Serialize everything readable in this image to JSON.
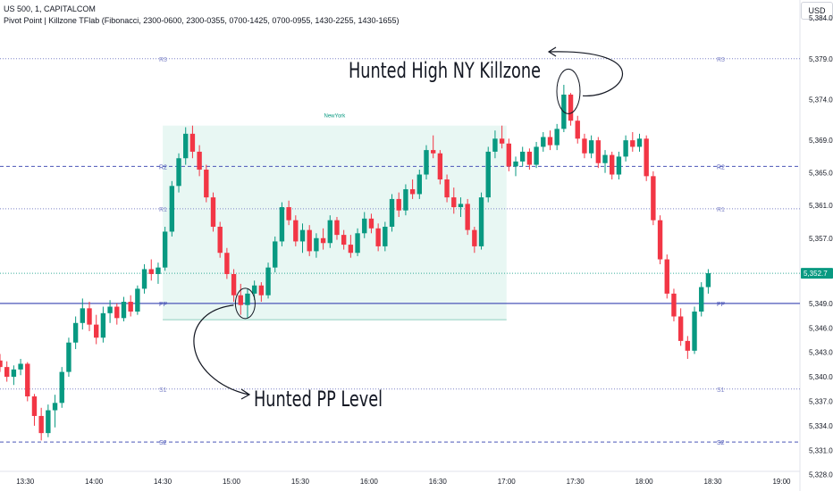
{
  "header": {
    "symbol_line": "US 500, 1, CAPITALCOM",
    "indicator_line": "Pivot Point | Killzone TFlab (Fibonacci, 2300-0600, 2300-0355, 0700-1425, 0700-0955, 1430-2255, 1430-1655)"
  },
  "currency_button": "USD",
  "chart_data": {
    "type": "candlestick",
    "symbol": "US 500",
    "timeframe": "1",
    "y_axis": {
      "ylim": [
        5326.0,
        5386.2
      ],
      "ticks": [
        5384.0,
        5379.0,
        5374.0,
        5369.0,
        5365.0,
        5361.0,
        5357.0,
        5353.0,
        5349.0,
        5346.0,
        5343.0,
        5340.0,
        5337.0,
        5334.0,
        5331.0,
        5328.0
      ],
      "tick_labels": [
        "5,384.0",
        "5,379.0",
        "5,374.0",
        "5,369.0",
        "5,365.0",
        "5,361.0",
        "5,357.0",
        "5,353.0",
        "5,349.0",
        "5,346.0",
        "5,343.0",
        "5,340.0",
        "5,337.0",
        "5,334.0",
        "5,331.0",
        "5,328.0"
      ]
    },
    "x_axis": {
      "xlim": [
        "13:19",
        "19:08"
      ],
      "ticks": [
        "13:30",
        "14:00",
        "14:30",
        "15:00",
        "15:30",
        "16:00",
        "16:30",
        "17:00",
        "17:30",
        "18:00",
        "18:30",
        "19:00"
      ]
    },
    "last_price": 5352.7,
    "last_price_label": "5,352.7",
    "last_price_color": "#089981",
    "up_color": "#089981",
    "down_color": "#f23645",
    "pivot_levels": [
      {
        "label": "R3",
        "value": 5379.0,
        "style": "dotted",
        "color": "#7e84c8"
      },
      {
        "label": "R2",
        "value": 5365.8,
        "style": "dashed",
        "color": "#4b56b8"
      },
      {
        "label": "R1",
        "value": 5360.6,
        "style": "dotted",
        "color": "#7e84c8"
      },
      {
        "label": "PP",
        "value": 5349.0,
        "style": "solid",
        "color": "#4b56b8"
      },
      {
        "label": "S1",
        "value": 5338.5,
        "style": "dotted",
        "color": "#7e84c8"
      },
      {
        "label": "S2",
        "value": 5332.0,
        "style": "dashed",
        "color": "#4b56b8"
      }
    ],
    "killzone": {
      "label": "NewYork",
      "start": "14:30",
      "end": "17:00",
      "high": 5370.8,
      "low": 5347.0,
      "color": "#e0f4ef",
      "label_color": "#089981"
    },
    "annotations": [
      {
        "text": "Hunted High NY Killzone",
        "time": "17:27",
        "price": 5375.0
      },
      {
        "text": "Hunted PP Level",
        "time": "15:06",
        "price": 5349.0
      }
    ],
    "series": [
      {
        "t": "13:19",
        "o": 5342.0,
        "h": 5342.8,
        "l": 5340.6,
        "c": 5341.2
      },
      {
        "t": "13:22",
        "o": 5341.2,
        "h": 5341.9,
        "l": 5339.4,
        "c": 5340.0
      },
      {
        "t": "13:25",
        "o": 5340.0,
        "h": 5341.4,
        "l": 5339.0,
        "c": 5340.9
      },
      {
        "t": "13:28",
        "o": 5340.9,
        "h": 5342.2,
        "l": 5340.2,
        "c": 5341.6
      },
      {
        "t": "13:31",
        "o": 5341.6,
        "h": 5341.8,
        "l": 5337.0,
        "c": 5337.6
      },
      {
        "t": "13:34",
        "o": 5337.6,
        "h": 5337.9,
        "l": 5334.0,
        "c": 5335.2
      },
      {
        "t": "13:37",
        "o": 5335.2,
        "h": 5336.2,
        "l": 5332.2,
        "c": 5333.1
      },
      {
        "t": "13:40",
        "o": 5333.1,
        "h": 5336.6,
        "l": 5332.6,
        "c": 5335.9
      },
      {
        "t": "13:43",
        "o": 5335.9,
        "h": 5337.8,
        "l": 5333.8,
        "c": 5336.8
      },
      {
        "t": "13:46",
        "o": 5336.8,
        "h": 5341.2,
        "l": 5336.2,
        "c": 5340.6
      },
      {
        "t": "13:49",
        "o": 5340.6,
        "h": 5344.8,
        "l": 5340.0,
        "c": 5344.2
      },
      {
        "t": "13:52",
        "o": 5344.2,
        "h": 5347.4,
        "l": 5343.4,
        "c": 5346.6
      },
      {
        "t": "13:55",
        "o": 5346.6,
        "h": 5349.6,
        "l": 5345.8,
        "c": 5348.4
      },
      {
        "t": "13:58",
        "o": 5348.4,
        "h": 5349.2,
        "l": 5345.6,
        "c": 5346.4
      },
      {
        "t": "14:01",
        "o": 5346.4,
        "h": 5347.6,
        "l": 5344.0,
        "c": 5344.8
      },
      {
        "t": "14:04",
        "o": 5344.8,
        "h": 5348.6,
        "l": 5344.2,
        "c": 5347.8
      },
      {
        "t": "14:07",
        "o": 5347.8,
        "h": 5349.4,
        "l": 5346.6,
        "c": 5348.6
      },
      {
        "t": "14:10",
        "o": 5348.6,
        "h": 5349.0,
        "l": 5346.4,
        "c": 5347.2
      },
      {
        "t": "14:13",
        "o": 5347.2,
        "h": 5349.8,
        "l": 5346.8,
        "c": 5349.2
      },
      {
        "t": "14:16",
        "o": 5349.2,
        "h": 5350.0,
        "l": 5347.4,
        "c": 5348.0
      },
      {
        "t": "14:19",
        "o": 5348.0,
        "h": 5351.2,
        "l": 5347.6,
        "c": 5350.8
      },
      {
        "t": "14:22",
        "o": 5350.8,
        "h": 5353.8,
        "l": 5350.2,
        "c": 5353.2
      },
      {
        "t": "14:25",
        "o": 5353.2,
        "h": 5354.4,
        "l": 5351.8,
        "c": 5352.6
      },
      {
        "t": "14:28",
        "o": 5352.6,
        "h": 5354.0,
        "l": 5351.4,
        "c": 5353.4
      },
      {
        "t": "14:31",
        "o": 5353.4,
        "h": 5358.4,
        "l": 5353.0,
        "c": 5357.8
      },
      {
        "t": "14:34",
        "o": 5357.8,
        "h": 5364.0,
        "l": 5357.2,
        "c": 5363.4
      },
      {
        "t": "14:37",
        "o": 5363.4,
        "h": 5367.4,
        "l": 5362.6,
        "c": 5366.8
      },
      {
        "t": "14:40",
        "o": 5366.8,
        "h": 5370.6,
        "l": 5366.0,
        "c": 5369.8
      },
      {
        "t": "14:43",
        "o": 5369.8,
        "h": 5370.8,
        "l": 5366.8,
        "c": 5367.6
      },
      {
        "t": "14:46",
        "o": 5367.6,
        "h": 5368.4,
        "l": 5364.6,
        "c": 5365.4
      },
      {
        "t": "14:49",
        "o": 5365.4,
        "h": 5366.0,
        "l": 5361.4,
        "c": 5362.0
      },
      {
        "t": "14:52",
        "o": 5362.0,
        "h": 5362.6,
        "l": 5357.8,
        "c": 5358.4
      },
      {
        "t": "14:55",
        "o": 5358.4,
        "h": 5359.0,
        "l": 5354.6,
        "c": 5355.2
      },
      {
        "t": "14:58",
        "o": 5355.2,
        "h": 5355.8,
        "l": 5352.0,
        "c": 5352.6
      },
      {
        "t": "15:01",
        "o": 5352.6,
        "h": 5353.2,
        "l": 5349.2,
        "c": 5350.0
      },
      {
        "t": "15:04",
        "o": 5350.0,
        "h": 5351.4,
        "l": 5347.6,
        "c": 5348.8
      },
      {
        "t": "15:07",
        "o": 5348.8,
        "h": 5350.8,
        "l": 5347.2,
        "c": 5350.2
      },
      {
        "t": "15:10",
        "o": 5350.2,
        "h": 5351.8,
        "l": 5349.4,
        "c": 5351.2
      },
      {
        "t": "15:13",
        "o": 5351.2,
        "h": 5351.6,
        "l": 5349.2,
        "c": 5350.0
      },
      {
        "t": "15:16",
        "o": 5350.0,
        "h": 5354.0,
        "l": 5349.6,
        "c": 5353.4
      },
      {
        "t": "15:19",
        "o": 5353.4,
        "h": 5357.2,
        "l": 5352.8,
        "c": 5356.6
      },
      {
        "t": "15:22",
        "o": 5356.6,
        "h": 5361.4,
        "l": 5356.0,
        "c": 5360.8
      },
      {
        "t": "15:25",
        "o": 5360.8,
        "h": 5361.6,
        "l": 5358.6,
        "c": 5359.2
      },
      {
        "t": "15:28",
        "o": 5359.2,
        "h": 5359.8,
        "l": 5356.0,
        "c": 5356.6
      },
      {
        "t": "15:31",
        "o": 5356.6,
        "h": 5358.8,
        "l": 5355.2,
        "c": 5358.0
      },
      {
        "t": "15:34",
        "o": 5358.0,
        "h": 5358.6,
        "l": 5354.8,
        "c": 5355.4
      },
      {
        "t": "15:37",
        "o": 5355.4,
        "h": 5357.6,
        "l": 5354.6,
        "c": 5357.0
      },
      {
        "t": "15:40",
        "o": 5357.0,
        "h": 5358.2,
        "l": 5355.6,
        "c": 5356.4
      },
      {
        "t": "15:43",
        "o": 5356.4,
        "h": 5359.8,
        "l": 5355.8,
        "c": 5359.2
      },
      {
        "t": "15:46",
        "o": 5359.2,
        "h": 5359.6,
        "l": 5356.8,
        "c": 5357.4
      },
      {
        "t": "15:49",
        "o": 5357.4,
        "h": 5358.0,
        "l": 5355.6,
        "c": 5356.2
      },
      {
        "t": "15:52",
        "o": 5356.2,
        "h": 5357.4,
        "l": 5354.6,
        "c": 5355.2
      },
      {
        "t": "15:55",
        "o": 5355.2,
        "h": 5358.2,
        "l": 5354.8,
        "c": 5357.6
      },
      {
        "t": "15:58",
        "o": 5357.6,
        "h": 5360.2,
        "l": 5357.0,
        "c": 5359.4
      },
      {
        "t": "16:01",
        "o": 5359.4,
        "h": 5360.0,
        "l": 5357.6,
        "c": 5358.2
      },
      {
        "t": "16:04",
        "o": 5358.2,
        "h": 5358.8,
        "l": 5355.4,
        "c": 5356.0
      },
      {
        "t": "16:07",
        "o": 5356.0,
        "h": 5359.0,
        "l": 5355.4,
        "c": 5358.4
      },
      {
        "t": "16:10",
        "o": 5358.4,
        "h": 5362.4,
        "l": 5357.8,
        "c": 5361.8
      },
      {
        "t": "16:13",
        "o": 5361.8,
        "h": 5362.6,
        "l": 5359.6,
        "c": 5360.4
      },
      {
        "t": "16:16",
        "o": 5360.4,
        "h": 5363.6,
        "l": 5359.8,
        "c": 5363.0
      },
      {
        "t": "16:19",
        "o": 5363.0,
        "h": 5364.2,
        "l": 5361.8,
        "c": 5362.4
      },
      {
        "t": "16:22",
        "o": 5362.4,
        "h": 5365.4,
        "l": 5361.8,
        "c": 5364.8
      },
      {
        "t": "16:25",
        "o": 5364.8,
        "h": 5368.4,
        "l": 5364.2,
        "c": 5367.8
      },
      {
        "t": "16:28",
        "o": 5367.8,
        "h": 5369.6,
        "l": 5366.8,
        "c": 5367.4
      },
      {
        "t": "16:31",
        "o": 5367.4,
        "h": 5367.8,
        "l": 5363.6,
        "c": 5364.2
      },
      {
        "t": "16:34",
        "o": 5364.2,
        "h": 5364.8,
        "l": 5361.4,
        "c": 5362.0
      },
      {
        "t": "16:37",
        "o": 5362.0,
        "h": 5363.2,
        "l": 5360.0,
        "c": 5360.8
      },
      {
        "t": "16:40",
        "o": 5360.8,
        "h": 5362.0,
        "l": 5359.6,
        "c": 5361.2
      },
      {
        "t": "16:43",
        "o": 5361.2,
        "h": 5361.8,
        "l": 5357.4,
        "c": 5358.0
      },
      {
        "t": "16:46",
        "o": 5358.0,
        "h": 5358.4,
        "l": 5355.2,
        "c": 5356.0
      },
      {
        "t": "16:49",
        "o": 5356.0,
        "h": 5362.6,
        "l": 5355.6,
        "c": 5362.0
      },
      {
        "t": "16:52",
        "o": 5362.0,
        "h": 5368.2,
        "l": 5361.4,
        "c": 5367.6
      },
      {
        "t": "16:55",
        "o": 5367.6,
        "h": 5370.2,
        "l": 5366.8,
        "c": 5369.2
      },
      {
        "t": "16:58",
        "o": 5369.2,
        "h": 5370.8,
        "l": 5368.0,
        "c": 5368.6
      },
      {
        "t": "17:01",
        "o": 5368.6,
        "h": 5369.2,
        "l": 5365.2,
        "c": 5365.8
      },
      {
        "t": "17:04",
        "o": 5365.8,
        "h": 5367.0,
        "l": 5364.6,
        "c": 5366.4
      },
      {
        "t": "17:07",
        "o": 5366.4,
        "h": 5368.2,
        "l": 5365.8,
        "c": 5367.6
      },
      {
        "t": "17:10",
        "o": 5367.6,
        "h": 5368.0,
        "l": 5365.4,
        "c": 5366.0
      },
      {
        "t": "17:13",
        "o": 5366.0,
        "h": 5368.8,
        "l": 5365.6,
        "c": 5368.2
      },
      {
        "t": "17:16",
        "o": 5368.2,
        "h": 5370.0,
        "l": 5367.6,
        "c": 5369.4
      },
      {
        "t": "17:19",
        "o": 5369.4,
        "h": 5370.2,
        "l": 5367.8,
        "c": 5368.4
      },
      {
        "t": "17:22",
        "o": 5368.4,
        "h": 5371.0,
        "l": 5367.8,
        "c": 5370.4
      },
      {
        "t": "17:25",
        "o": 5370.4,
        "h": 5375.8,
        "l": 5370.0,
        "c": 5374.6
      },
      {
        "t": "17:28",
        "o": 5374.6,
        "h": 5374.8,
        "l": 5370.8,
        "c": 5371.4
      },
      {
        "t": "17:31",
        "o": 5371.4,
        "h": 5372.0,
        "l": 5368.6,
        "c": 5369.2
      },
      {
        "t": "17:34",
        "o": 5369.2,
        "h": 5369.8,
        "l": 5366.8,
        "c": 5367.4
      },
      {
        "t": "17:37",
        "o": 5367.4,
        "h": 5369.6,
        "l": 5366.8,
        "c": 5369.0
      },
      {
        "t": "17:40",
        "o": 5369.0,
        "h": 5369.4,
        "l": 5365.6,
        "c": 5366.2
      },
      {
        "t": "17:43",
        "o": 5366.2,
        "h": 5367.8,
        "l": 5365.0,
        "c": 5367.2
      },
      {
        "t": "17:46",
        "o": 5367.2,
        "h": 5367.6,
        "l": 5364.2,
        "c": 5364.8
      },
      {
        "t": "17:49",
        "o": 5364.8,
        "h": 5367.6,
        "l": 5364.2,
        "c": 5367.0
      },
      {
        "t": "17:52",
        "o": 5367.0,
        "h": 5369.6,
        "l": 5366.4,
        "c": 5369.0
      },
      {
        "t": "17:55",
        "o": 5369.0,
        "h": 5370.0,
        "l": 5367.6,
        "c": 5368.2
      },
      {
        "t": "17:58",
        "o": 5368.2,
        "h": 5369.8,
        "l": 5367.6,
        "c": 5369.2
      },
      {
        "t": "18:01",
        "o": 5369.2,
        "h": 5369.6,
        "l": 5364.0,
        "c": 5364.6
      },
      {
        "t": "18:04",
        "o": 5364.6,
        "h": 5365.2,
        "l": 5358.6,
        "c": 5359.2
      },
      {
        "t": "18:07",
        "o": 5359.2,
        "h": 5359.8,
        "l": 5353.8,
        "c": 5354.4
      },
      {
        "t": "18:10",
        "o": 5354.4,
        "h": 5355.0,
        "l": 5349.6,
        "c": 5350.2
      },
      {
        "t": "18:13",
        "o": 5350.2,
        "h": 5350.8,
        "l": 5346.8,
        "c": 5347.4
      },
      {
        "t": "18:16",
        "o": 5347.4,
        "h": 5348.4,
        "l": 5343.8,
        "c": 5344.4
      },
      {
        "t": "18:19",
        "o": 5344.4,
        "h": 5345.0,
        "l": 5342.2,
        "c": 5343.2
      },
      {
        "t": "18:22",
        "o": 5343.2,
        "h": 5348.6,
        "l": 5342.8,
        "c": 5348.0
      },
      {
        "t": "18:25",
        "o": 5348.0,
        "h": 5351.6,
        "l": 5347.4,
        "c": 5351.0
      },
      {
        "t": "18:28",
        "o": 5351.0,
        "h": 5353.2,
        "l": 5350.2,
        "c": 5352.7
      }
    ]
  }
}
